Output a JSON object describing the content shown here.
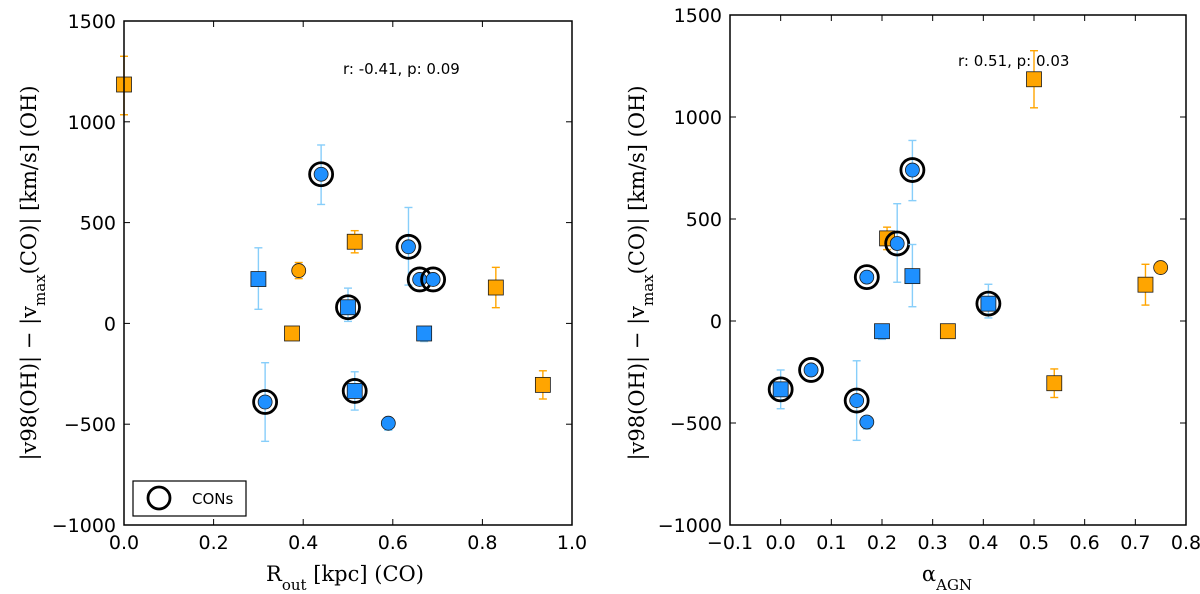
{
  "colors": {
    "blue": "#1e90ff",
    "orange": "#ffa500",
    "blue_err": "#87cefa",
    "orange_err": "#ffa500",
    "ring": "#000000"
  },
  "chart_data": [
    {
      "type": "scatter",
      "ylabel": "|v98(OH)| − |v_max(CO)| [km/s] (OH)",
      "ylabel_parts": {
        "a": "|v98(OH)| − |v",
        "sub": "max",
        "b": "(CO)| [km/s] (OH)"
      },
      "xlabel": "R_out [kpc] (CO)",
      "xlabel_parts": {
        "a": "R",
        "sub": "out",
        "b": " [kpc] (CO)"
      },
      "xlim": [
        0.0,
        1.0
      ],
      "ylim": [
        -1000,
        1500
      ],
      "xticks": [
        "0.0",
        "0.2",
        "0.4",
        "0.6",
        "0.8",
        "1.0"
      ],
      "yticks": [
        "−1000",
        "−500",
        "0",
        "500",
        "1000",
        "1500"
      ],
      "annotation": "r: -0.41, p: 0.09",
      "legend": {
        "label": "CONs",
        "loc": "lower-left"
      },
      "points": [
        {
          "x": 0.0,
          "y": 1185,
          "color": "orange",
          "marker": "square",
          "err_lo": 150,
          "err_hi": 140,
          "con": false
        },
        {
          "x": 0.3,
          "y": 220,
          "color": "blue",
          "marker": "square",
          "err_lo": 150,
          "err_hi": 155,
          "con": false
        },
        {
          "x": 0.315,
          "y": -390,
          "color": "blue",
          "marker": "circle",
          "err_lo": 195,
          "err_hi": 195,
          "con": true
        },
        {
          "x": 0.375,
          "y": -50,
          "color": "orange",
          "marker": "square",
          "err_lo": 0,
          "err_hi": 0,
          "con": false
        },
        {
          "x": 0.39,
          "y": 262,
          "color": "orange",
          "marker": "circle",
          "err_lo": 40,
          "err_hi": 40,
          "con": false
        },
        {
          "x": 0.44,
          "y": 740,
          "color": "blue",
          "marker": "circle",
          "err_lo": 150,
          "err_hi": 145,
          "con": true
        },
        {
          "x": 0.5,
          "y": 80,
          "color": "blue",
          "marker": "square",
          "err_lo": 70,
          "err_hi": 95,
          "con": true
        },
        {
          "x": 0.515,
          "y": 405,
          "color": "orange",
          "marker": "square",
          "err_lo": 55,
          "err_hi": 55,
          "con": false
        },
        {
          "x": 0.515,
          "y": -335,
          "color": "blue",
          "marker": "square",
          "err_lo": 95,
          "err_hi": 95,
          "con": true
        },
        {
          "x": 0.59,
          "y": -495,
          "color": "blue",
          "marker": "circle",
          "err_lo": 35,
          "err_hi": 20,
          "con": false
        },
        {
          "x": 0.635,
          "y": 380,
          "color": "blue",
          "marker": "circle",
          "err_lo": 190,
          "err_hi": 195,
          "con": true
        },
        {
          "x": 0.66,
          "y": 218,
          "color": "blue",
          "marker": "circle",
          "err_lo": 15,
          "err_hi": 15,
          "con": true
        },
        {
          "x": 0.69,
          "y": 218,
          "color": "blue",
          "marker": "circle",
          "err_lo": 0,
          "err_hi": 0,
          "con": true
        },
        {
          "x": 0.67,
          "y": -50,
          "color": "blue",
          "marker": "square",
          "err_lo": 40,
          "err_hi": 30,
          "con": false
        },
        {
          "x": 0.83,
          "y": 178,
          "color": "orange",
          "marker": "square",
          "err_lo": 100,
          "err_hi": 100,
          "con": false
        },
        {
          "x": 0.935,
          "y": -305,
          "color": "orange",
          "marker": "square",
          "err_lo": 70,
          "err_hi": 70,
          "con": false
        }
      ]
    },
    {
      "type": "scatter",
      "ylabel": "|v98(OH)| − |v_max(CO)| [km/s] (OH)",
      "ylabel_parts": {
        "a": "|v98(OH)| − |v",
        "sub": "max",
        "b": "(CO)| [km/s] (OH)"
      },
      "xlabel": "α_AGN",
      "xlabel_parts": {
        "a": "α",
        "sub": "AGN",
        "b": ""
      },
      "xlim": [
        -0.1,
        0.8
      ],
      "ylim": [
        -1000,
        1500
      ],
      "xticks": [
        "−0.1",
        "0.0",
        "0.1",
        "0.2",
        "0.3",
        "0.4",
        "0.5",
        "0.6",
        "0.7",
        "0.8"
      ],
      "yticks": [
        "−1000",
        "−500",
        "0",
        "500",
        "1000",
        "1500"
      ],
      "annotation": "r: 0.51, p: 0.03",
      "points": [
        {
          "x": 0.0,
          "y": -335,
          "color": "blue",
          "marker": "square",
          "err_lo": 95,
          "err_hi": 95,
          "con": true
        },
        {
          "x": 0.06,
          "y": -240,
          "color": "blue",
          "marker": "circle",
          "err_lo": 0,
          "err_hi": 0,
          "con": true
        },
        {
          "x": 0.15,
          "y": -390,
          "color": "blue",
          "marker": "circle",
          "err_lo": 195,
          "err_hi": 195,
          "con": true
        },
        {
          "x": 0.17,
          "y": -495,
          "color": "blue",
          "marker": "circle",
          "err_lo": 35,
          "err_hi": 20,
          "con": false
        },
        {
          "x": 0.17,
          "y": 215,
          "color": "blue",
          "marker": "circle",
          "err_lo": 15,
          "err_hi": 15,
          "con": true
        },
        {
          "x": 0.2,
          "y": -50,
          "color": "blue",
          "marker": "square",
          "err_lo": 40,
          "err_hi": 30,
          "con": false
        },
        {
          "x": 0.21,
          "y": 405,
          "color": "orange",
          "marker": "square",
          "err_lo": 55,
          "err_hi": 55,
          "con": false
        },
        {
          "x": 0.23,
          "y": 380,
          "color": "blue",
          "marker": "circle",
          "err_lo": 190,
          "err_hi": 195,
          "con": true
        },
        {
          "x": 0.26,
          "y": 740,
          "color": "blue",
          "marker": "circle",
          "err_lo": 150,
          "err_hi": 145,
          "con": true
        },
        {
          "x": 0.26,
          "y": 220,
          "color": "blue",
          "marker": "square",
          "err_lo": 150,
          "err_hi": 155,
          "con": false
        },
        {
          "x": 0.33,
          "y": -50,
          "color": "orange",
          "marker": "square",
          "err_lo": 0,
          "err_hi": 0,
          "con": false
        },
        {
          "x": 0.41,
          "y": 85,
          "color": "blue",
          "marker": "square",
          "err_lo": 70,
          "err_hi": 95,
          "con": true
        },
        {
          "x": 0.5,
          "y": 1185,
          "color": "orange",
          "marker": "square",
          "err_lo": 140,
          "err_hi": 140,
          "con": false
        },
        {
          "x": 0.54,
          "y": -305,
          "color": "orange",
          "marker": "square",
          "err_lo": 70,
          "err_hi": 70,
          "con": false
        },
        {
          "x": 0.72,
          "y": 178,
          "color": "orange",
          "marker": "square",
          "err_lo": 100,
          "err_hi": 100,
          "con": false
        },
        {
          "x": 0.75,
          "y": 262,
          "color": "orange",
          "marker": "circle",
          "err_lo": 0,
          "err_hi": 0,
          "con": false
        }
      ]
    }
  ]
}
